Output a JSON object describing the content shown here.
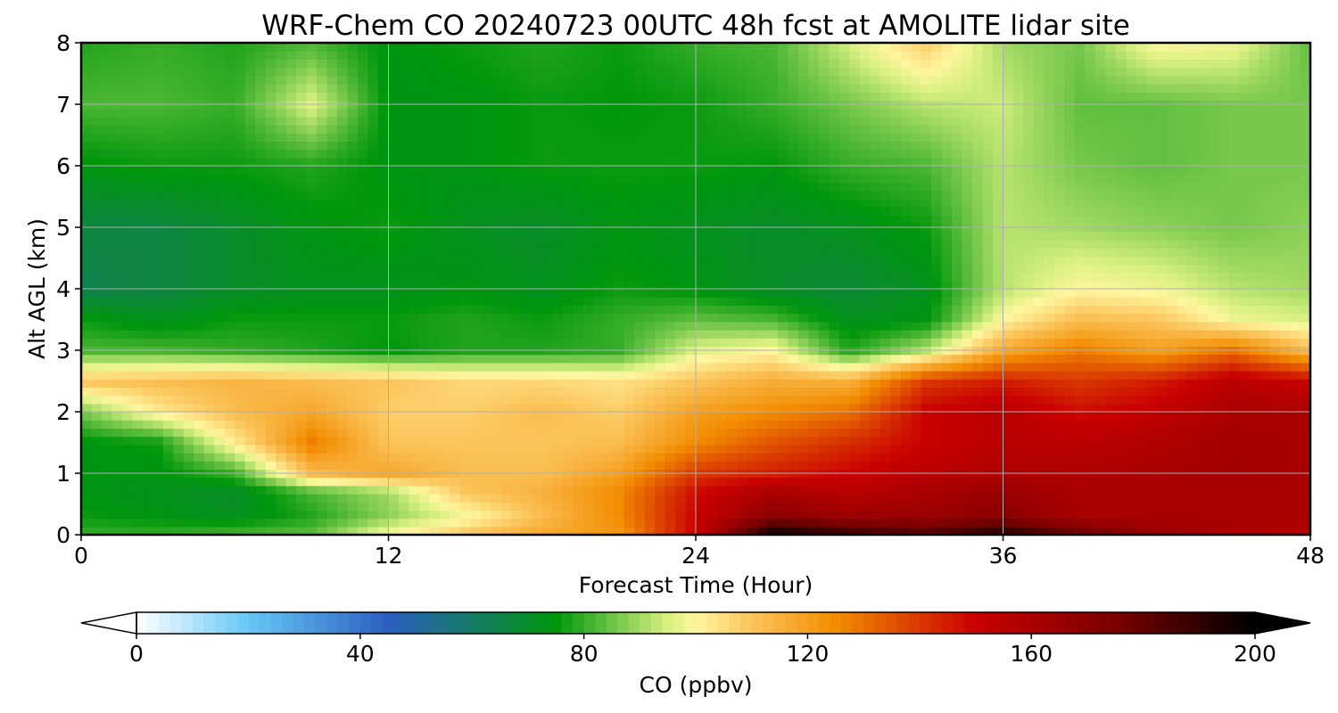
{
  "chart_data": {
    "type": "heatmap",
    "title": "WRF-Chem CO  20240723 00UTC 48h fcst at AMOLITE lidar site",
    "xlabel": "Forecast Time (Hour)",
    "ylabel": "Alt AGL (km)",
    "xlim": [
      0,
      48
    ],
    "ylim": [
      0,
      8
    ],
    "xticks": [
      0,
      12,
      24,
      36,
      48
    ],
    "yticks": [
      0,
      1,
      2,
      3,
      4,
      5,
      6,
      7,
      8
    ],
    "grid": true,
    "x": [
      0,
      3,
      6,
      9,
      12,
      15,
      18,
      21,
      24,
      27,
      30,
      33,
      36,
      39,
      42,
      45,
      48
    ],
    "y": [
      0,
      0.3,
      0.7,
      1.0,
      1.5,
      2.0,
      2.5,
      3.0,
      3.5,
      4.0,
      5.0,
      6.0,
      7.0,
      8.0
    ],
    "z": [
      [
        80,
        80,
        82,
        84,
        100,
        110,
        118,
        122,
        150,
        200,
        190,
        185,
        195,
        180,
        165,
        160,
        155
      ],
      [
        76,
        74,
        72,
        78,
        88,
        98,
        112,
        125,
        150,
        170,
        165,
        165,
        170,
        160,
        160,
        160,
        160
      ],
      [
        74,
        72,
        70,
        82,
        90,
        110,
        115,
        125,
        148,
        160,
        155,
        160,
        165,
        160,
        160,
        160,
        160
      ],
      [
        74,
        74,
        80,
        112,
        118,
        112,
        112,
        120,
        140,
        145,
        150,
        155,
        158,
        158,
        160,
        162,
        160
      ],
      [
        74,
        76,
        102,
        128,
        110,
        110,
        110,
        112,
        125,
        135,
        142,
        150,
        155,
        155,
        158,
        162,
        160
      ],
      [
        86,
        102,
        112,
        118,
        108,
        108,
        112,
        108,
        120,
        125,
        130,
        150,
        155,
        148,
        152,
        160,
        160
      ],
      [
        110,
        112,
        114,
        112,
        110,
        106,
        106,
        104,
        110,
        116,
        115,
        140,
        145,
        140,
        145,
        155,
        150
      ],
      [
        82,
        82,
        80,
        78,
        75,
        78,
        78,
        80,
        96,
        100,
        78,
        92,
        118,
        128,
        120,
        130,
        112
      ],
      [
        76,
        72,
        76,
        76,
        76,
        78,
        76,
        80,
        84,
        82,
        72,
        74,
        100,
        112,
        110,
        98,
        95
      ],
      [
        64,
        66,
        70,
        72,
        72,
        74,
        72,
        76,
        74,
        70,
        68,
        72,
        92,
        100,
        98,
        92,
        90
      ],
      [
        66,
        66,
        70,
        74,
        76,
        72,
        70,
        74,
        72,
        70,
        72,
        76,
        92,
        90,
        88,
        86,
        88
      ],
      [
        74,
        76,
        76,
        78,
        74,
        74,
        76,
        76,
        76,
        75,
        80,
        82,
        92,
        86,
        84,
        86,
        86
      ],
      [
        82,
        82,
        80,
        96,
        74,
        74,
        76,
        75,
        76,
        80,
        86,
        92,
        94,
        84,
        84,
        86,
        86
      ],
      [
        78,
        80,
        78,
        82,
        74,
        76,
        78,
        76,
        80,
        82,
        95,
        108,
        90,
        86,
        100,
        98,
        84
      ]
    ],
    "colorbar": {
      "label": "CO  (ppbv)",
      "min": 0,
      "max": 200,
      "ticks": [
        0,
        40,
        80,
        120,
        160,
        200
      ],
      "extend": "both",
      "stops": [
        {
          "value": 0,
          "color": "#ffffff"
        },
        {
          "value": 20,
          "color": "#67c7f5"
        },
        {
          "value": 45,
          "color": "#2c5fc0"
        },
        {
          "value": 60,
          "color": "#167b66"
        },
        {
          "value": 75,
          "color": "#00960c"
        },
        {
          "value": 95,
          "color": "#d8f080"
        },
        {
          "value": 100,
          "color": "#fff6a0"
        },
        {
          "value": 110,
          "color": "#fbc45b"
        },
        {
          "value": 125,
          "color": "#f28c00"
        },
        {
          "value": 150,
          "color": "#c90000"
        },
        {
          "value": 175,
          "color": "#7a0000"
        },
        {
          "value": 200,
          "color": "#000000"
        }
      ]
    }
  }
}
